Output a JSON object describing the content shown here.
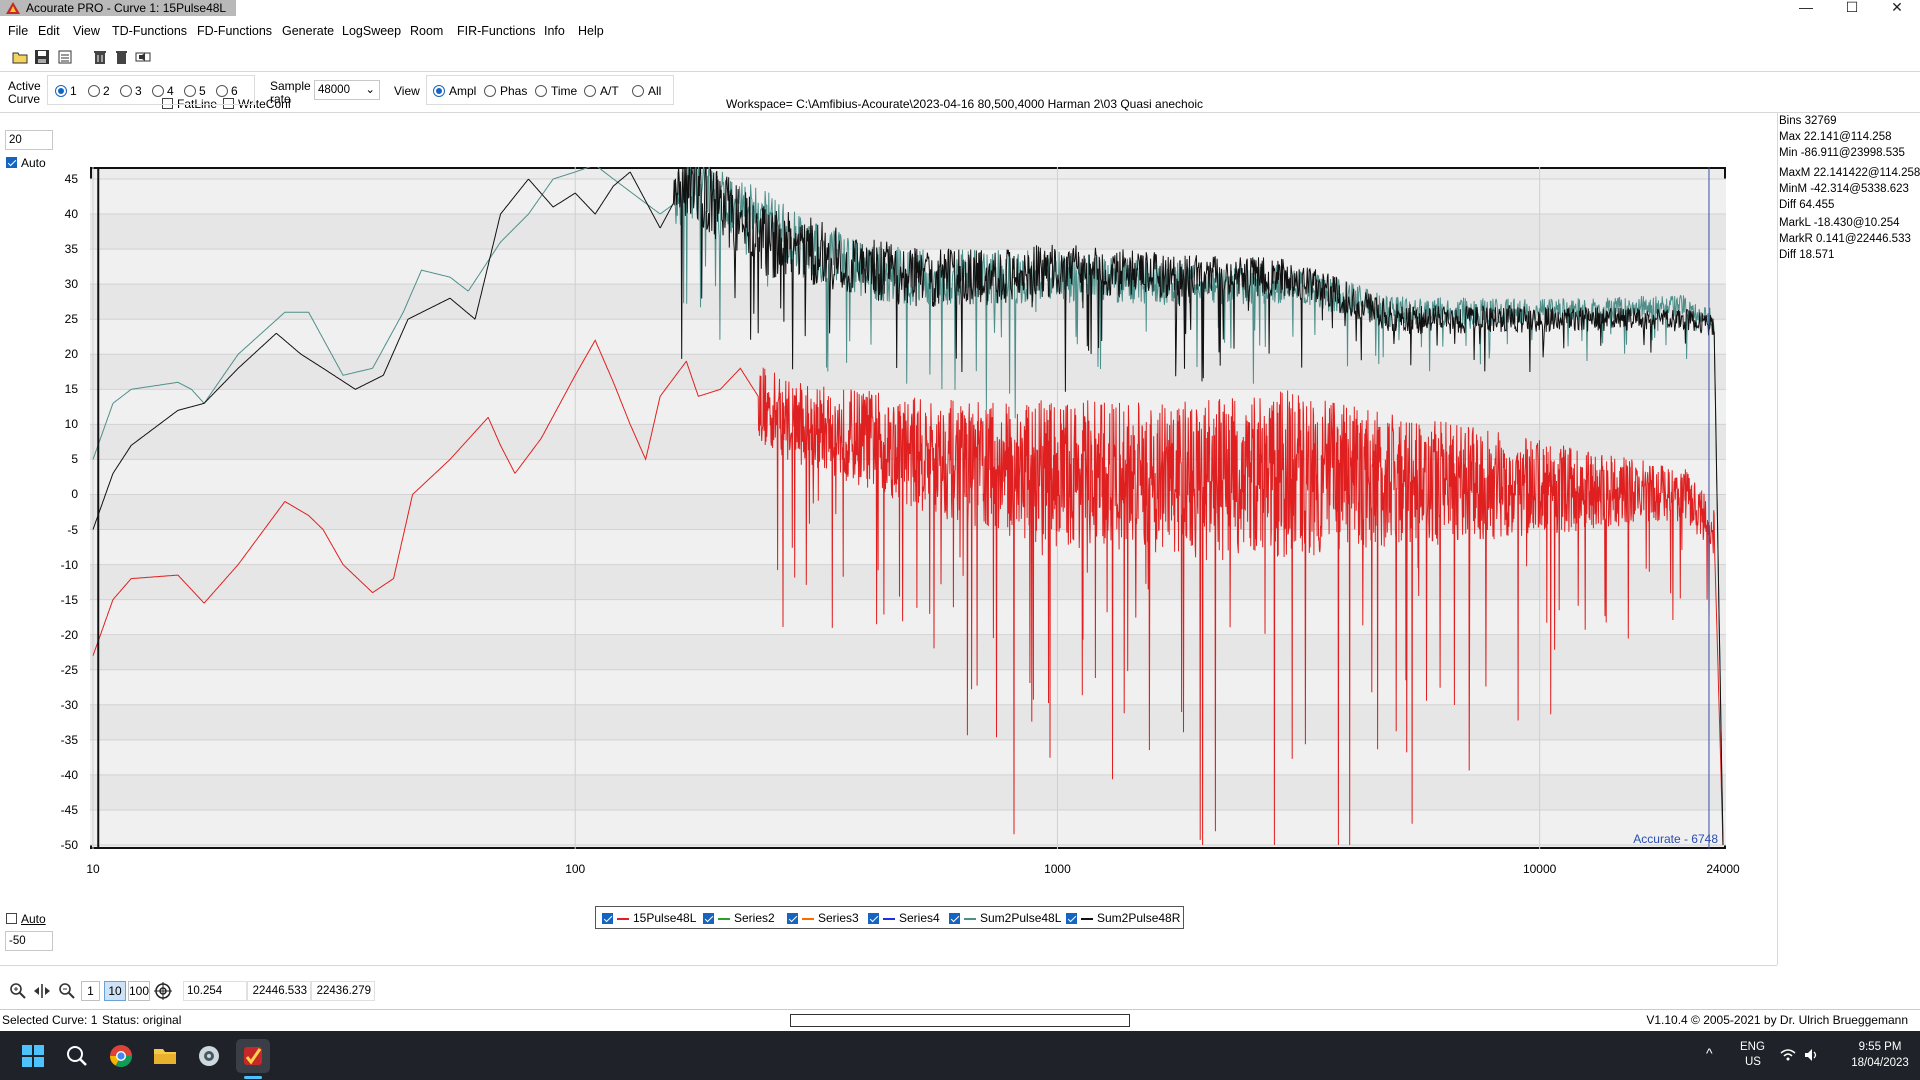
{
  "window": {
    "title": "Acourate PRO - Curve 1: 15Pulse48L",
    "controls": {
      "minimize": "—",
      "maximize": "☐",
      "close": "✕"
    }
  },
  "menu": [
    "File",
    "Edit",
    "View",
    "TD-Functions",
    "FD-Functions",
    "Generate",
    "LogSweep",
    "Room",
    "FIR-Functions",
    "Info",
    "Help"
  ],
  "toolbar": {
    "fatline_label": "FatLine",
    "fatline_checked": false,
    "writeconf_label": "WriteConf",
    "writeconf_checked": false,
    "workspace": "Workspace= C:\\Amfibius-Acourate\\2023-04-16 80,500,4000 Harman 2\\03 Quasi anechoic"
  },
  "controls_bar": {
    "active_curve_label": "Active\nCurve",
    "curves": [
      "1",
      "2",
      "3",
      "4",
      "5",
      "6"
    ],
    "active_curve": "1",
    "sample_rate_label": "Sample\nrate",
    "sample_rate": "48000",
    "view_label": "View",
    "views": [
      "Ampl",
      "Phas",
      "Time",
      "A/T",
      "All"
    ],
    "active_view": "Ampl"
  },
  "yaxis": {
    "top_value": "20",
    "top_auto_label": "Auto",
    "top_auto_checked": true,
    "bottom_auto_label": "Auto",
    "bottom_auto_checked": false,
    "bottom_value": "-50"
  },
  "chart_data": {
    "type": "line",
    "title": "",
    "xlabel": "",
    "ylabel": "",
    "xscale": "log",
    "xlim": [
      10,
      24000
    ],
    "ylim": [
      -50,
      47
    ],
    "yticks": [
      45,
      40,
      35,
      30,
      25,
      20,
      15,
      10,
      5,
      0,
      -5,
      -10,
      -15,
      -20,
      -25,
      -30,
      -35,
      -40,
      -45,
      -50
    ],
    "xticks": [
      "10",
      "100",
      "1000",
      "10000",
      "24000"
    ],
    "grid": true,
    "watermark": "Accurate - 6748",
    "marker_x": [
      10.254,
      22446.533
    ],
    "series": [
      {
        "name": "15Pulse48L",
        "color": "#e02020",
        "anchors": [
          [
            10,
            -23
          ],
          [
            11,
            -15
          ],
          [
            12,
            -12
          ],
          [
            15,
            -11.5
          ],
          [
            17,
            -15.5
          ],
          [
            20,
            -10
          ],
          [
            25,
            -1
          ],
          [
            28,
            -3
          ],
          [
            30,
            -5
          ],
          [
            33,
            -10
          ],
          [
            38,
            -14
          ],
          [
            42,
            -12
          ],
          [
            46,
            0
          ],
          [
            55,
            5
          ],
          [
            66,
            11
          ],
          [
            70,
            7
          ],
          [
            75,
            3
          ],
          [
            85,
            8
          ],
          [
            100,
            17
          ],
          [
            110,
            22
          ],
          [
            120,
            16
          ],
          [
            130,
            10
          ],
          [
            140,
            5
          ],
          [
            150,
            14
          ],
          [
            170,
            19
          ],
          [
            180,
            14
          ],
          [
            200,
            15
          ],
          [
            220,
            18
          ],
          [
            250,
            12
          ],
          [
            300,
            10
          ],
          [
            400,
            8
          ],
          [
            500,
            6
          ],
          [
            700,
            4
          ],
          [
            1000,
            3
          ],
          [
            2000,
            2
          ],
          [
            3000,
            3
          ],
          [
            5000,
            2
          ],
          [
            10000,
            1
          ],
          [
            20000,
            0
          ],
          [
            23000,
            -5
          ],
          [
            24000,
            -50
          ]
        ],
        "noise": [
          [
            300,
            8
          ],
          [
            1000,
            14
          ],
          [
            3000,
            16
          ],
          [
            10000,
            9
          ],
          [
            20000,
            5
          ]
        ]
      },
      {
        "name": "Series2",
        "color": "#2ca02c",
        "hidden": true
      },
      {
        "name": "Series3",
        "color": "#ff6a00",
        "hidden": true
      },
      {
        "name": "Series4",
        "color": "#2030e0",
        "hidden": true
      },
      {
        "name": "Sum2Pulse48L",
        "color": "#4f8f8a",
        "anchors": [
          [
            10,
            5
          ],
          [
            11,
            13
          ],
          [
            12,
            15
          ],
          [
            15,
            16
          ],
          [
            16,
            15
          ],
          [
            17,
            13
          ],
          [
            20,
            20
          ],
          [
            25,
            26
          ],
          [
            28,
            26
          ],
          [
            33,
            17
          ],
          [
            38,
            18
          ],
          [
            44,
            26
          ],
          [
            48,
            32
          ],
          [
            55,
            31
          ],
          [
            60,
            29
          ],
          [
            70,
            36
          ],
          [
            80,
            40
          ],
          [
            90,
            45
          ],
          [
            100,
            46
          ],
          [
            110,
            47
          ],
          [
            120,
            45
          ],
          [
            150,
            40
          ],
          [
            180,
            44
          ],
          [
            200,
            42
          ],
          [
            250,
            39
          ],
          [
            300,
            35
          ],
          [
            400,
            32
          ],
          [
            500,
            31
          ],
          [
            700,
            31
          ],
          [
            1000,
            31
          ],
          [
            2000,
            30
          ],
          [
            3000,
            30
          ],
          [
            4000,
            28
          ],
          [
            5000,
            26
          ],
          [
            10000,
            26
          ],
          [
            20000,
            27
          ],
          [
            23000,
            25
          ],
          [
            24000,
            -50
          ]
        ],
        "noise": [
          [
            200,
            6
          ],
          [
            1000,
            5
          ],
          [
            5000,
            3
          ],
          [
            20000,
            2
          ]
        ]
      },
      {
        "name": "Sum2Pulse48R",
        "color": "#111111",
        "anchors": [
          [
            10,
            -5
          ],
          [
            11,
            3
          ],
          [
            12,
            7
          ],
          [
            15,
            12
          ],
          [
            17,
            13
          ],
          [
            20,
            18
          ],
          [
            24,
            23
          ],
          [
            27,
            20
          ],
          [
            30,
            18
          ],
          [
            35,
            15
          ],
          [
            40,
            17
          ],
          [
            45,
            25
          ],
          [
            55,
            28
          ],
          [
            62,
            25
          ],
          [
            70,
            40
          ],
          [
            80,
            45
          ],
          [
            90,
            41
          ],
          [
            100,
            43
          ],
          [
            110,
            40
          ],
          [
            120,
            44
          ],
          [
            130,
            46
          ],
          [
            150,
            38
          ],
          [
            170,
            45
          ],
          [
            200,
            41
          ],
          [
            250,
            36
          ],
          [
            300,
            35
          ],
          [
            400,
            32
          ],
          [
            500,
            31
          ],
          [
            700,
            31
          ],
          [
            1000,
            32
          ],
          [
            2000,
            31
          ],
          [
            3000,
            31
          ],
          [
            4000,
            28
          ],
          [
            5000,
            25
          ],
          [
            10000,
            25
          ],
          [
            20000,
            25
          ],
          [
            23000,
            24
          ],
          [
            24000,
            -50
          ]
        ],
        "noise": [
          [
            200,
            7
          ],
          [
            1000,
            5
          ],
          [
            5000,
            3
          ],
          [
            20000,
            2
          ]
        ]
      }
    ]
  },
  "stats": {
    "bins": "Bins 32769",
    "max": "Max 22.141@114.258",
    "min": "Min -86.911@23998.535",
    "maxm": "MaxM 22.141422@114.258",
    "minm": "MinM -42.314@5338.623",
    "diff1": "Diff 64.455",
    "markl": "MarkL -18.430@10.254",
    "markr": "MarkR 0.141@22446.533",
    "diff2": "Diff 18.571"
  },
  "legend": [
    {
      "label": "15Pulse48L",
      "color": "#e02020",
      "checked": true
    },
    {
      "label": "Series2",
      "color": "#2ca02c",
      "checked": true
    },
    {
      "label": "Series3",
      "color": "#ff6a00",
      "checked": true
    },
    {
      "label": "Series4",
      "color": "#2030e0",
      "checked": true
    },
    {
      "label": "Sum2Pulse48L",
      "color": "#4f8f8a",
      "checked": true
    },
    {
      "label": "Sum2Pulse48R",
      "color": "#111111",
      "checked": true
    }
  ],
  "zoom": {
    "btn1": "1",
    "btn10": "10",
    "btn100": "100",
    "mark_left": "10.254",
    "mark_right": "22446.533",
    "mark_diff": "22436.279"
  },
  "status": {
    "selected": "Selected Curve: 1",
    "state": "Status: original",
    "version": "V1.10.4 © 2005-2021 by Dr. Ulrich Brueggemann"
  },
  "taskbar": {
    "lang": "ENG",
    "region": "US",
    "time": "9:55 PM",
    "date": "18/04/2023"
  }
}
